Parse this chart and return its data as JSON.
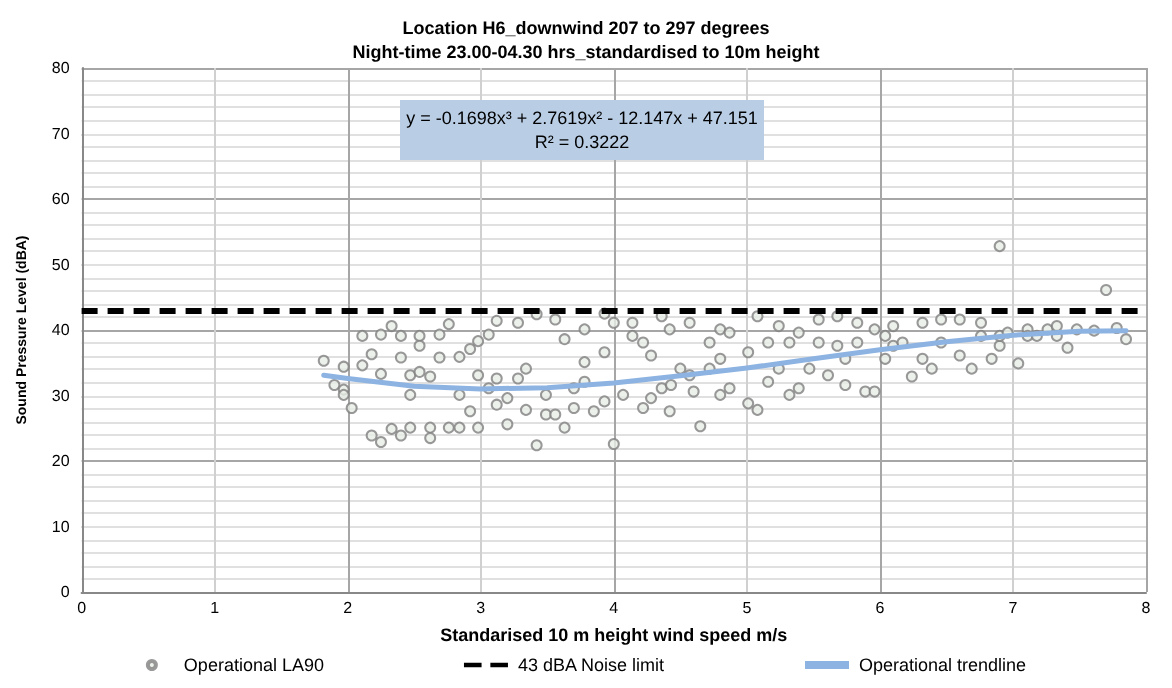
{
  "chart_data": {
    "type": "scatter",
    "title": "Location H6_downwind 207 to 297 degrees\nNight-time 23.00-04.30 hrs_standardised to 10m height",
    "xlabel": "Standarised 10 m height wind speed m/s",
    "ylabel": "Sound Pressure Level (dBA)",
    "annotations": [
      "y = -0.1698x³ + 2.7619x² - 12.147x + 47.151",
      "R² = 0.3222"
    ],
    "xlim": [
      0,
      8
    ],
    "xticks": [
      0,
      1,
      2,
      3,
      4,
      5,
      6,
      7,
      8
    ],
    "ylim": [
      0,
      80
    ],
    "yticks": [
      0,
      10,
      20,
      30,
      40,
      50,
      60,
      70,
      80
    ],
    "grid": true,
    "legend": "bottom",
    "marker": "circle",
    "series": [
      {
        "name": "Operational LA90",
        "type": "scatter",
        "color": "#7f7f7f",
        "x": [
          1.82,
          1.9,
          1.97,
          1.97,
          1.97,
          2.03,
          2.11,
          2.11,
          2.18,
          2.18,
          2.25,
          2.25,
          2.25,
          2.33,
          2.33,
          2.4,
          2.4,
          2.4,
          2.47,
          2.47,
          2.47,
          2.54,
          2.54,
          2.54,
          2.62,
          2.62,
          2.62,
          2.69,
          2.69,
          2.76,
          2.76,
          2.84,
          2.84,
          2.84,
          2.92,
          2.92,
          2.98,
          2.98,
          2.98,
          3.06,
          3.06,
          3.12,
          3.12,
          3.12,
          3.2,
          3.2,
          3.28,
          3.28,
          3.34,
          3.34,
          3.42,
          3.42,
          3.49,
          3.49,
          3.56,
          3.56,
          3.63,
          3.63,
          3.7,
          3.7,
          3.78,
          3.78,
          3.78,
          3.85,
          3.93,
          3.93,
          3.93,
          4.0,
          4.0,
          4.07,
          4.14,
          4.14,
          4.22,
          4.22,
          4.28,
          4.28,
          4.36,
          4.36,
          4.42,
          4.42,
          4.43,
          4.5,
          4.57,
          4.57,
          4.6,
          4.65,
          4.72,
          4.72,
          4.8,
          4.8,
          4.8,
          4.87,
          4.87,
          5.01,
          5.01,
          5.08,
          5.08,
          5.16,
          5.16,
          5.24,
          5.24,
          5.32,
          5.32,
          5.39,
          5.39,
          5.47,
          5.54,
          5.54,
          5.61,
          5.68,
          5.68,
          5.74,
          5.74,
          5.83,
          5.83,
          5.89,
          5.96,
          5.96,
          6.04,
          6.04,
          6.1,
          6.1,
          6.17,
          6.24,
          6.32,
          6.32,
          6.39,
          6.46,
          6.46,
          6.6,
          6.6,
          6.69,
          6.76,
          6.76,
          6.84,
          6.9,
          6.9,
          6.9,
          6.96,
          7.04,
          7.11,
          7.11,
          7.18,
          7.26,
          7.33,
          7.33,
          7.41,
          7.48,
          7.61,
          7.7,
          7.78,
          7.85
        ],
        "values": [
          35.3,
          31.6,
          34.4,
          30.9,
          30.1,
          28.1,
          39.1,
          34.6,
          36.3,
          23.9,
          22.9,
          33.3,
          39.3,
          40.6,
          24.9,
          39.1,
          35.8,
          23.9,
          33.1,
          30.1,
          25.1,
          39.1,
          37.6,
          33.6,
          32.9,
          25.1,
          23.5,
          39.3,
          35.8,
          40.9,
          25.1,
          35.9,
          30.1,
          25.1,
          37.1,
          27.6,
          38.3,
          33.1,
          25.1,
          39.3,
          31.1,
          41.4,
          32.6,
          28.6,
          29.6,
          25.6,
          41.1,
          32.6,
          34.1,
          27.8,
          42.4,
          22.4,
          30.1,
          27.1,
          41.6,
          27.1,
          38.6,
          25.1,
          31.1,
          28.1,
          40.1,
          35.1,
          32.1,
          27.6,
          42.5,
          36.6,
          29.1,
          41.1,
          22.6,
          30.1,
          41.1,
          39.1,
          38.1,
          28.1,
          36.1,
          29.6,
          42.1,
          31.1,
          40.1,
          27.6,
          31.6,
          34.1,
          41.1,
          33.1,
          30.6,
          25.3,
          38.1,
          34.1,
          40.1,
          35.6,
          30.1,
          39.6,
          31.1,
          36.6,
          28.8,
          42.1,
          27.8,
          38.1,
          32.1,
          40.6,
          34.1,
          38.1,
          30.1,
          39.6,
          31.1,
          34.1,
          41.6,
          38.1,
          33.1,
          42.1,
          37.6,
          35.6,
          31.6,
          41.1,
          38.1,
          30.6,
          40.1,
          30.6,
          39.1,
          35.6,
          40.6,
          37.6,
          38.1,
          32.9,
          41.1,
          35.6,
          34.1,
          41.6,
          38.1,
          41.6,
          36.1,
          34.1,
          41.1,
          39.1,
          35.6,
          52.8,
          37.6,
          39.1,
          39.6,
          34.9,
          40.1,
          39.1,
          39.1,
          40.1,
          40.6,
          39.1,
          37.3,
          40.1,
          39.9,
          46.1,
          40.3,
          38.6
        ]
      },
      {
        "name": "Operational trendline",
        "type": "line",
        "color": "#8db3e2",
        "marker": "none",
        "x": [
          1.82,
          2,
          2.5,
          3,
          3.5,
          4,
          4.5,
          5,
          5.5,
          6,
          6.5,
          7,
          7.5,
          7.85
        ],
        "values": [
          33.1,
          32.6,
          31.4,
          31.0,
          31.2,
          31.9,
          33.0,
          34.2,
          35.6,
          37.0,
          38.2,
          39.2,
          39.8,
          39.9
        ]
      }
    ],
    "ref_lines": [
      {
        "axis": "y",
        "value": 43,
        "label": "43 dBA Noise limit",
        "color": "#000000",
        "line_style": "dashed"
      }
    ]
  }
}
